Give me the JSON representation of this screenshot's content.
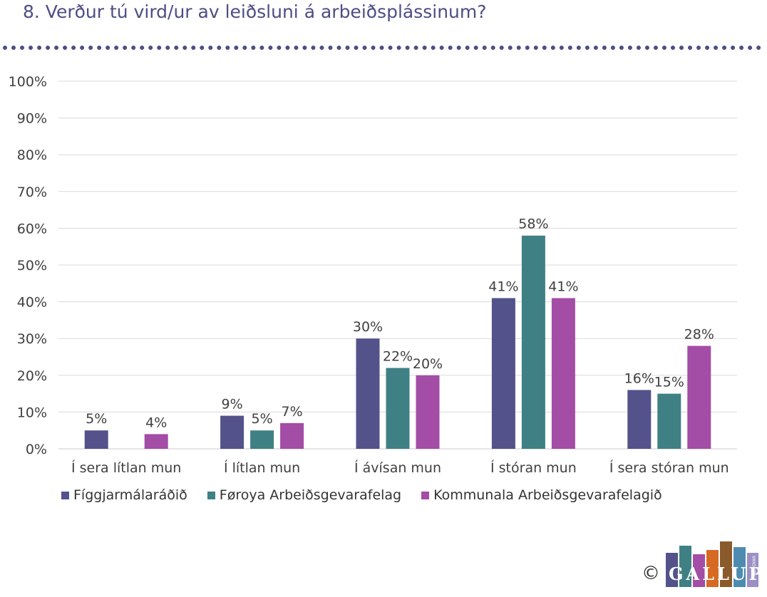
{
  "title": "8. Verður tú vird/ur av leiðsluni á arbeiðsplássinum?",
  "chart_data": {
    "type": "bar",
    "categories": [
      "Í sera lítlan mun",
      "Í lítlan mun",
      "Í ávísan mun",
      "Í stóran mun",
      "Í sera stóran mun"
    ],
    "series": [
      {
        "name": "Fíggjarmálaráðið",
        "color": "#53528a",
        "values": [
          5,
          9,
          30,
          41,
          16
        ],
        "labels": [
          "5%",
          "9%",
          "30%",
          "41%",
          "16%"
        ]
      },
      {
        "name": "Føroya Arbeiðsgevarafelag",
        "color": "#3f8084",
        "values": [
          null,
          5,
          22,
          58,
          15
        ],
        "labels": [
          "",
          "5%",
          "22%",
          "58%",
          "15%"
        ]
      },
      {
        "name": "Kommunala Arbeiðsgevarafelagið",
        "color": "#a34da6",
        "values": [
          4,
          7,
          20,
          41,
          28
        ],
        "labels": [
          "4%",
          "7%",
          "20%",
          "41%",
          "28%"
        ]
      }
    ],
    "ylim": [
      0,
      100
    ],
    "yticks": [
      "0%",
      "10%",
      "20%",
      "30%",
      "40%",
      "50%",
      "60%",
      "70%",
      "80%",
      "90%",
      "100%"
    ],
    "grid": true,
    "legend_position": "bottom-left"
  },
  "footer": {
    "copyright": "©",
    "logo_text": "GALLUP",
    "logo_sub": "FØROYAR"
  }
}
